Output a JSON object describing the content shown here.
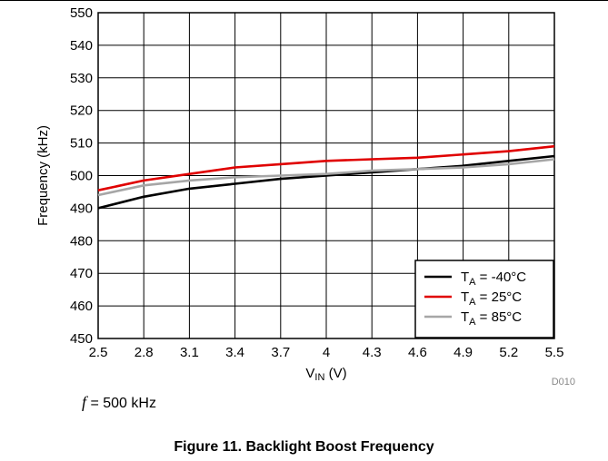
{
  "figure": {
    "condition_symbol": "f",
    "condition_text": "= 500 kHz",
    "caption": "Figure 11. Backlight Boost Frequency",
    "doc_code": "D010"
  },
  "chart_data": {
    "type": "line",
    "xlabel": "V",
    "xlabel_sub": "IN",
    "xlabel_unit": " (V)",
    "ylabel": "Frequency (kHz)",
    "xlim": [
      2.5,
      5.5
    ],
    "ylim": [
      450,
      550
    ],
    "xticks": [
      "2.5",
      "2.8",
      "3.1",
      "3.4",
      "3.7",
      "4",
      "4.3",
      "4.6",
      "4.9",
      "5.2",
      "5.5"
    ],
    "yticks": [
      "450",
      "460",
      "470",
      "480",
      "490",
      "500",
      "510",
      "520",
      "530",
      "540",
      "550"
    ],
    "grid": true,
    "legend_position": "bottom-right",
    "series": [
      {
        "label_main": "T",
        "label_sub": "A",
        "label_rest": " = -40°C",
        "color": "#000000",
        "x": [
          2.5,
          2.8,
          3.1,
          3.4,
          3.7,
          4.0,
          4.3,
          4.6,
          4.9,
          5.2,
          5.5
        ],
        "y": [
          490,
          493.5,
          496,
          497.5,
          499,
          500,
          501,
          502,
          503,
          504.5,
          506
        ]
      },
      {
        "label_main": "T",
        "label_sub": "A",
        "label_rest": " = 25°C",
        "color": "#e00000",
        "x": [
          2.5,
          2.8,
          3.1,
          3.4,
          3.7,
          4.0,
          4.3,
          4.6,
          4.9,
          5.2,
          5.5
        ],
        "y": [
          495.5,
          498.5,
          500.5,
          502.5,
          503.5,
          504.5,
          505,
          505.5,
          506.5,
          507.5,
          509
        ]
      },
      {
        "label_main": "T",
        "label_sub": "A",
        "label_rest": " = 85°C",
        "color": "#a6a6a6",
        "x": [
          2.5,
          2.8,
          3.1,
          3.4,
          3.7,
          4.0,
          4.3,
          4.6,
          4.9,
          5.2,
          5.5
        ],
        "y": [
          494,
          497,
          498.5,
          499.5,
          500,
          500.5,
          501.5,
          502,
          502.5,
          503.5,
          505
        ]
      }
    ]
  }
}
